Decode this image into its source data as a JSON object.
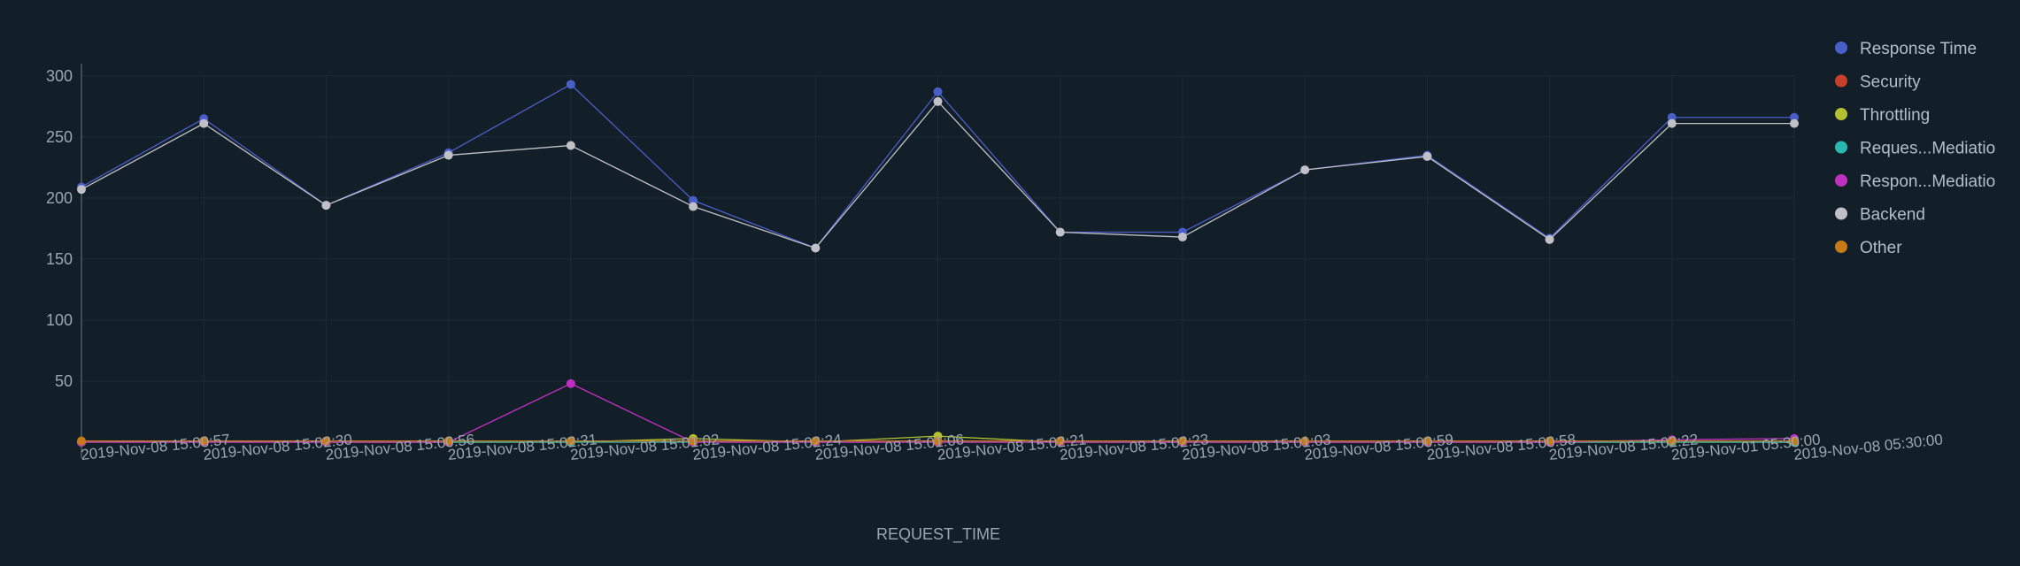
{
  "chart_data": {
    "type": "line",
    "xlabel": "REQUEST_TIME",
    "ylabel": "",
    "ylim": [
      0,
      310
    ],
    "yticks": [
      50,
      100,
      150,
      200,
      250,
      300
    ],
    "grid": true,
    "legend_position": "top-right",
    "categories": [
      "2019-Nov-08 15:00:57",
      "2019-Nov-08 15:02:30",
      "2019-Nov-08 15:00:56",
      "2019-Nov-08 15:02:31",
      "2019-Nov-08 15:01:02",
      "2019-Nov-08 15:02:24",
      "2019-Nov-08 15:01:06",
      "2019-Nov-08 15:02:21",
      "2019-Nov-08 15:02:23",
      "2019-Nov-08 15:01:03",
      "2019-Nov-08 15:00:59",
      "2019-Nov-08 15:00:58",
      "2019-Nov-08 15:02:22",
      "2019-Nov-01 05:30:00",
      "2019-Nov-08 05:30:00"
    ],
    "series": [
      {
        "name": "Response Time",
        "color": "#4a5ec8",
        "values": [
          209,
          265,
          194,
          237,
          293,
          198,
          159,
          287,
          172,
          172,
          223,
          235,
          167,
          266,
          266
        ]
      },
      {
        "name": "Security",
        "color": "#c8402a",
        "values": [
          0,
          0,
          0,
          0,
          0,
          0,
          0,
          0,
          0,
          0,
          0,
          0,
          0,
          0,
          0
        ]
      },
      {
        "name": "Throttling",
        "color": "#b4c232",
        "values": [
          0,
          1,
          0,
          0,
          0,
          3,
          0,
          5,
          0,
          0,
          0,
          0,
          0,
          0,
          0
        ]
      },
      {
        "name": "Reques...Mediatio",
        "color": "#2ab8b0",
        "values": [
          0,
          0,
          0,
          0,
          0,
          0,
          0,
          0,
          0,
          0,
          0,
          0,
          0,
          0,
          0
        ]
      },
      {
        "name": "Respon...Mediatio",
        "color": "#c030c0",
        "values": [
          0,
          0,
          0,
          0,
          48,
          0,
          0,
          0,
          0,
          0,
          0,
          0,
          0,
          2,
          3
        ]
      },
      {
        "name": "Backend",
        "color": "#c0c0c6",
        "values": [
          207,
          261,
          194,
          235,
          243,
          193,
          159,
          279,
          172,
          168,
          223,
          234,
          166,
          261,
          261
        ]
      },
      {
        "name": "Other",
        "color": "#c87a18",
        "values": [
          1,
          1,
          1,
          1,
          1,
          1,
          1,
          1,
          1,
          1,
          1,
          1,
          1,
          1,
          1
        ]
      }
    ]
  }
}
